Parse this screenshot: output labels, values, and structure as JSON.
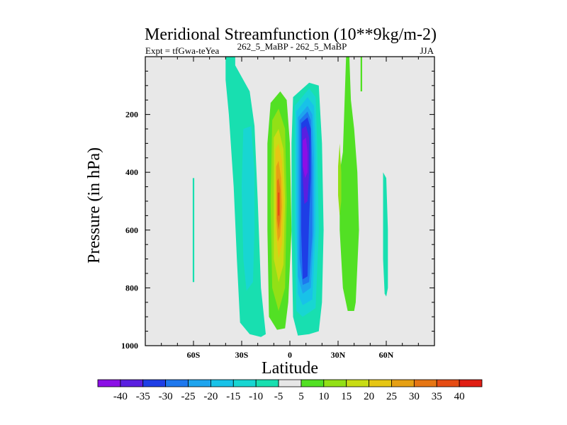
{
  "chart_data": {
    "type": "contour",
    "title": "Meridional Streamfunction (10**9kg/m-2)",
    "subtitle_left": "Expt = tfGwa-teYea",
    "subtitle_center": "262_5_MaBP - 262_5_MaBP",
    "subtitle_right": "JJA",
    "xlabel": "Latitude",
    "ylabel": "Pressure (in hPa)",
    "xlim": [
      -90,
      90
    ],
    "ylim": [
      0,
      1000
    ],
    "y_inverted": true,
    "x_ticks": [
      {
        "value": -60,
        "label": "60S"
      },
      {
        "value": -30,
        "label": "30S"
      },
      {
        "value": 0,
        "label": "0"
      },
      {
        "value": 30,
        "label": "30N"
      },
      {
        "value": 60,
        "label": "60N"
      }
    ],
    "y_ticks": [
      {
        "value": 200,
        "label": "200"
      },
      {
        "value": 400,
        "label": "400"
      },
      {
        "value": 600,
        "label": "600"
      },
      {
        "value": 800,
        "label": "800"
      },
      {
        "value": 1000,
        "label": "1000"
      }
    ],
    "background_color": "#e8e8e8",
    "colorbar": {
      "levels": [
        -40,
        -35,
        -30,
        -25,
        -20,
        -15,
        -10,
        -5,
        5,
        10,
        15,
        20,
        25,
        30,
        35,
        40
      ],
      "colors": [
        "#8b0fe6",
        "#5a1fe0",
        "#1e3ee6",
        "#1e78ee",
        "#1ea4ee",
        "#18c2e8",
        "#18d6d2",
        "#18dfb0",
        "#e6e6e6",
        "#52e024",
        "#92e016",
        "#c8dc14",
        "#e6c614",
        "#e6a014",
        "#e67614",
        "#e64c14",
        "#e01e14"
      ]
    },
    "regions": [
      {
        "level": -5,
        "polygon": [
          [
            -40,
            0
          ],
          [
            -34,
            0
          ],
          [
            -34,
            30
          ],
          [
            -25,
            120
          ],
          [
            -22,
            240
          ],
          [
            -20,
            500
          ],
          [
            -18,
            800
          ],
          [
            -15,
            960
          ],
          [
            -18,
            970
          ],
          [
            -25,
            960
          ],
          [
            -31,
            920
          ],
          [
            -33,
            700
          ],
          [
            -35,
            450
          ],
          [
            -38,
            200
          ],
          [
            -40,
            80
          ]
        ]
      },
      {
        "level": -10,
        "polygon": [
          [
            -29,
            250
          ],
          [
            -24,
            240
          ],
          [
            -22,
            400
          ],
          [
            -22,
            600
          ],
          [
            -23,
            780
          ],
          [
            -27,
            810
          ],
          [
            -29,
            700
          ],
          [
            -30,
            450
          ]
        ]
      },
      {
        "level": -5,
        "polygon": [
          [
            -60.5,
            420
          ],
          [
            -59.5,
            420
          ],
          [
            -59.5,
            780
          ],
          [
            -60.5,
            780
          ]
        ]
      },
      {
        "level": 5,
        "polygon": [
          [
            -12,
            160
          ],
          [
            -6,
            120
          ],
          [
            -2,
            150
          ],
          [
            0,
            300
          ],
          [
            1,
            600
          ],
          [
            -1,
            850
          ],
          [
            -3,
            940
          ],
          [
            -8,
            945
          ],
          [
            -13,
            900
          ],
          [
            -14,
            600
          ],
          [
            -14,
            300
          ]
        ]
      },
      {
        "level": 10,
        "polygon": [
          [
            -11,
            220
          ],
          [
            -7,
            180
          ],
          [
            -3,
            250
          ],
          [
            -2,
            500
          ],
          [
            -3,
            800
          ],
          [
            -7,
            880
          ],
          [
            -11,
            800
          ],
          [
            -12,
            500
          ]
        ]
      },
      {
        "level": 15,
        "polygon": [
          [
            -10,
            280
          ],
          [
            -7,
            250
          ],
          [
            -4,
            320
          ],
          [
            -3,
            500
          ],
          [
            -4,
            720
          ],
          [
            -7,
            780
          ],
          [
            -10,
            700
          ],
          [
            -10,
            480
          ]
        ]
      },
      {
        "level": 20,
        "polygon": [
          [
            -9,
            320
          ],
          [
            -7,
            300
          ],
          [
            -5,
            360
          ],
          [
            -4,
            500
          ],
          [
            -5,
            650
          ],
          [
            -7,
            700
          ],
          [
            -9,
            600
          ],
          [
            -9,
            450
          ]
        ]
      },
      {
        "level": 25,
        "polygon": [
          [
            -8.5,
            380
          ],
          [
            -7,
            360
          ],
          [
            -5.5,
            420
          ],
          [
            -5,
            520
          ],
          [
            -6,
            620
          ],
          [
            -7.5,
            640
          ],
          [
            -8.5,
            560
          ]
        ]
      },
      {
        "level": 30,
        "polygon": [
          [
            -8,
            430
          ],
          [
            -7,
            420
          ],
          [
            -6,
            460
          ],
          [
            -6,
            560
          ],
          [
            -7,
            600
          ],
          [
            -8,
            560
          ]
        ]
      },
      {
        "level": 35,
        "polygon": [
          [
            -7.5,
            470
          ],
          [
            -6.5,
            470
          ],
          [
            -6.5,
            550
          ],
          [
            -7.5,
            550
          ]
        ]
      },
      {
        "level": -5,
        "polygon": [
          [
            2,
            140
          ],
          [
            12,
            90
          ],
          [
            18,
            100
          ],
          [
            20,
            300
          ],
          [
            21,
            600
          ],
          [
            20,
            850
          ],
          [
            18,
            950
          ],
          [
            12,
            960
          ],
          [
            5,
            965
          ],
          [
            2,
            900
          ],
          [
            1,
            600
          ],
          [
            1,
            300
          ]
        ]
      },
      {
        "level": -10,
        "polygon": [
          [
            3,
            170
          ],
          [
            12,
            110
          ],
          [
            16,
            140
          ],
          [
            17,
            300
          ],
          [
            18,
            600
          ],
          [
            16,
            870
          ],
          [
            8,
            900
          ],
          [
            4,
            880
          ],
          [
            3,
            600
          ],
          [
            3,
            300
          ]
        ]
      },
      {
        "level": -15,
        "polygon": [
          [
            4,
            190
          ],
          [
            11,
            140
          ],
          [
            15,
            170
          ],
          [
            16,
            330
          ],
          [
            16,
            600
          ],
          [
            14,
            840
          ],
          [
            8,
            860
          ],
          [
            5,
            820
          ],
          [
            4,
            550
          ]
        ]
      },
      {
        "level": -20,
        "polygon": [
          [
            5,
            210
          ],
          [
            11,
            170
          ],
          [
            14,
            200
          ],
          [
            15,
            350
          ],
          [
            15,
            600
          ],
          [
            13,
            800
          ],
          [
            8,
            820
          ],
          [
            5,
            760
          ],
          [
            5,
            450
          ]
        ]
      },
      {
        "level": -25,
        "polygon": [
          [
            6,
            220
          ],
          [
            11,
            190
          ],
          [
            13,
            220
          ],
          [
            14,
            380
          ],
          [
            14,
            620
          ],
          [
            12,
            780
          ],
          [
            8,
            790
          ],
          [
            6,
            700
          ],
          [
            6,
            400
          ]
        ]
      },
      {
        "level": -30,
        "polygon": [
          [
            7,
            230
          ],
          [
            11,
            210
          ],
          [
            13,
            250
          ],
          [
            13,
            420
          ],
          [
            12,
            560
          ],
          [
            11,
            760
          ],
          [
            8,
            770
          ],
          [
            7,
            600
          ],
          [
            7,
            350
          ]
        ]
      },
      {
        "level": -35,
        "polygon": [
          [
            7.5,
            250
          ],
          [
            10,
            240
          ],
          [
            12,
            280
          ],
          [
            12,
            400
          ],
          [
            11,
            500
          ],
          [
            9,
            510
          ],
          [
            8,
            420
          ]
        ]
      },
      {
        "level": -40,
        "polygon": [
          [
            8,
            290
          ],
          [
            10,
            280
          ],
          [
            11,
            330
          ],
          [
            11,
            400
          ],
          [
            9.5,
            420
          ],
          [
            8,
            380
          ]
        ]
      },
      {
        "level": 5,
        "polygon": [
          [
            33,
            330
          ],
          [
            35,
            0
          ],
          [
            37,
            0
          ],
          [
            38,
            150
          ],
          [
            40,
            250
          ],
          [
            42,
            400
          ],
          [
            43,
            600
          ],
          [
            41,
            850
          ],
          [
            40,
            880
          ],
          [
            36,
            880
          ],
          [
            33,
            800
          ],
          [
            31,
            600
          ],
          [
            31,
            400
          ]
        ]
      },
      {
        "level": 10,
        "polygon": [
          [
            31,
            300
          ],
          [
            32,
            400
          ],
          [
            32,
            500
          ],
          [
            31,
            550
          ],
          [
            30,
            480
          ],
          [
            30,
            380
          ]
        ]
      },
      {
        "level": 5,
        "polygon": [
          [
            44,
            0
          ],
          [
            45,
            0
          ],
          [
            45,
            120
          ],
          [
            44,
            120
          ]
        ]
      },
      {
        "level": -5,
        "polygon": [
          [
            58,
            400
          ],
          [
            60,
            420
          ],
          [
            61,
            600
          ],
          [
            61,
            800
          ],
          [
            60,
            830
          ],
          [
            59,
            820
          ],
          [
            58,
            700
          ],
          [
            58,
            500
          ]
        ]
      }
    ]
  }
}
